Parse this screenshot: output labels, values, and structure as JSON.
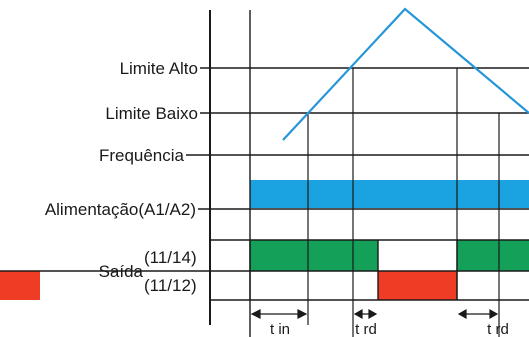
{
  "labels": {
    "limite_alto": "Limite Alto",
    "limite_baixo": "Limite Baixo",
    "frequencia": "Frequência",
    "alimentacao": "Alimentação(A1/A2)",
    "saida": "Saída",
    "saida_1114": "(11/14)",
    "saida_1112": "(11/12)",
    "t_in": "t in",
    "t_rd_1": "t rd",
    "t_rd_2": "t rd"
  },
  "colors": {
    "line": "#1a1a1a",
    "frequency_line": "#2596d8",
    "power_bar": "#1aa3e0",
    "output_1114": "#15a05a",
    "output_1112": "#ee3d24"
  }
}
